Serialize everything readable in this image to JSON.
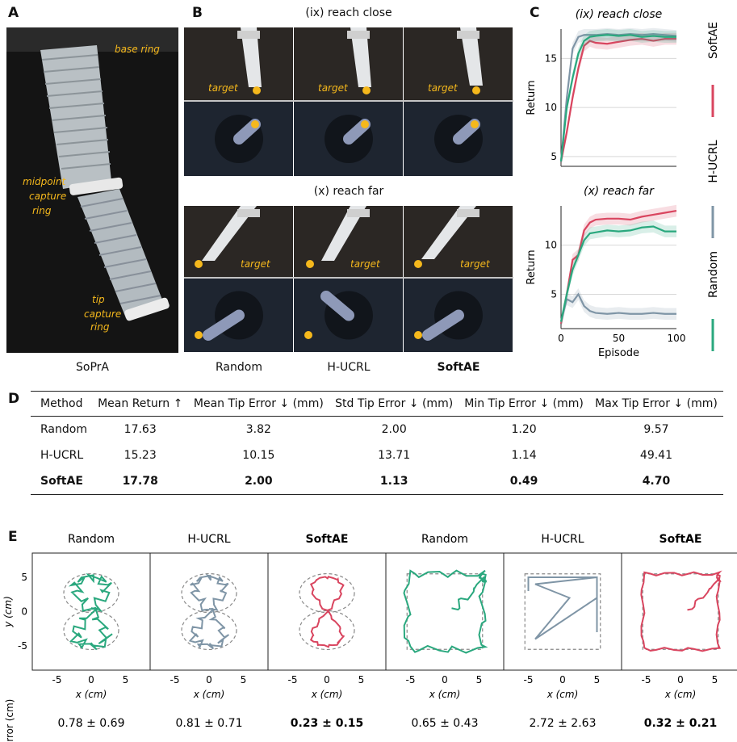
{
  "panels": {
    "a": "A",
    "b": "B",
    "c": "C",
    "d": "D",
    "e": "E"
  },
  "panel_a": {
    "labels": [
      "base ring",
      "midpoint",
      "capture",
      "ring",
      "tip",
      "capture",
      "ring"
    ],
    "caption": "SoPrA"
  },
  "panel_b": {
    "row1_title": "(ix) reach close",
    "row2_title": "(x) reach far",
    "target_label": "target",
    "captions": [
      "Random",
      "H-UCRL",
      "SoftAE"
    ]
  },
  "panel_c": {
    "chart_data": [
      {
        "type": "line",
        "title": "(ix) reach close",
        "ylabel": "Return",
        "xlabel": "",
        "xlim": [
          0,
          100
        ],
        "ylim": [
          4,
          18
        ],
        "yticks": [
          5,
          10,
          15
        ],
        "series": [
          {
            "name": "SoftAE",
            "color": "#d9455f",
            "x": [
              0,
              5,
              10,
              15,
              20,
              25,
              30,
              40,
              50,
              60,
              70,
              80,
              90,
              100
            ],
            "y": [
              4.5,
              7.5,
              11,
              14,
              16.3,
              16.8,
              16.6,
              16.5,
              16.7,
              16.9,
              17.0,
              16.8,
              17.0,
              17.0
            ]
          },
          {
            "name": "H-UCRL",
            "color": "#7f95a6",
            "x": [
              0,
              5,
              10,
              15,
              20,
              25,
              30,
              40,
              50,
              60,
              70,
              80,
              90,
              100
            ],
            "y": [
              4.5,
              11,
              16,
              17.2,
              17.4,
              17.4,
              17.4,
              17.5,
              17.4,
              17.5,
              17.4,
              17.5,
              17.4,
              17.3
            ]
          },
          {
            "name": "Random",
            "color": "#2aa87e",
            "x": [
              0,
              5,
              10,
              15,
              20,
              25,
              30,
              40,
              50,
              60,
              70,
              80,
              90,
              100
            ],
            "y": [
              4.5,
              10,
              13,
              15.5,
              16.8,
              17.2,
              17.3,
              17.4,
              17.3,
              17.4,
              17.2,
              17.3,
              17.2,
              17.2
            ]
          }
        ]
      },
      {
        "type": "line",
        "title": "(x) reach far",
        "ylabel": "Return",
        "xlabel": "Episode",
        "xlim": [
          0,
          100
        ],
        "ylim": [
          1.5,
          14
        ],
        "yticks": [
          5,
          10
        ],
        "xticks": [
          0,
          50,
          100
        ],
        "series": [
          {
            "name": "SoftAE",
            "color": "#d9455f",
            "x": [
              0,
              5,
              10,
              15,
              20,
              25,
              30,
              40,
              50,
              60,
              70,
              80,
              90,
              100
            ],
            "y": [
              2,
              5,
              8.5,
              9,
              11.5,
              12.3,
              12.6,
              12.7,
              12.7,
              12.6,
              12.9,
              13.1,
              13.3,
              13.5
            ]
          },
          {
            "name": "H-UCRL",
            "color": "#7f95a6",
            "x": [
              0,
              5,
              10,
              15,
              20,
              25,
              30,
              40,
              50,
              60,
              70,
              80,
              90,
              100
            ],
            "y": [
              2.2,
              4.5,
              4.2,
              5,
              3.8,
              3.3,
              3.1,
              3.0,
              3.1,
              3.0,
              3.0,
              3.1,
              3.0,
              3.0
            ]
          },
          {
            "name": "Random",
            "color": "#2aa87e",
            "x": [
              0,
              5,
              10,
              15,
              20,
              25,
              30,
              40,
              50,
              60,
              70,
              80,
              90,
              100
            ],
            "y": [
              2.2,
              5,
              7.5,
              9,
              10.5,
              11.2,
              11.3,
              11.5,
              11.4,
              11.5,
              11.8,
              11.9,
              11.4,
              11.4
            ]
          }
        ]
      }
    ],
    "legend": [
      {
        "name": "SoftAE",
        "color": "#d9455f"
      },
      {
        "name": "H-UCRL",
        "color": "#7f95a6"
      },
      {
        "name": "Random",
        "color": "#2aa87e"
      }
    ]
  },
  "table": {
    "headers": [
      "Method",
      "Mean Return ↑",
      "Mean Tip Error ↓ (mm)",
      "Std Tip Error ↓ (mm)",
      "Min Tip Error ↓ (mm)",
      "Max Tip Error ↓ (mm)"
    ],
    "rows": [
      [
        "Random",
        "17.63",
        "3.82",
        "2.00",
        "1.20",
        "9.57"
      ],
      [
        "H-UCRL",
        "15.23",
        "10.15",
        "13.71",
        "1.14",
        "49.41"
      ],
      [
        "SoftAE",
        "17.78",
        "2.00",
        "1.13",
        "0.49",
        "4.70"
      ]
    ]
  },
  "panel_e": {
    "titles": [
      "Random",
      "H-UCRL",
      "SoftAE",
      "Random",
      "H-UCRL",
      "SoftAE"
    ],
    "ylabel": "y (cm)",
    "xlabel": "x (cm)",
    "ticks": [
      "-5",
      "0",
      "5"
    ],
    "error_label": "Error (cm)",
    "errors": [
      "0.78 ± 0.69",
      "0.81 ± 0.71",
      "0.23 ± 0.15",
      "0.65 ± 0.43",
      "2.72 ± 2.63",
      "0.32 ± 0.21"
    ]
  }
}
